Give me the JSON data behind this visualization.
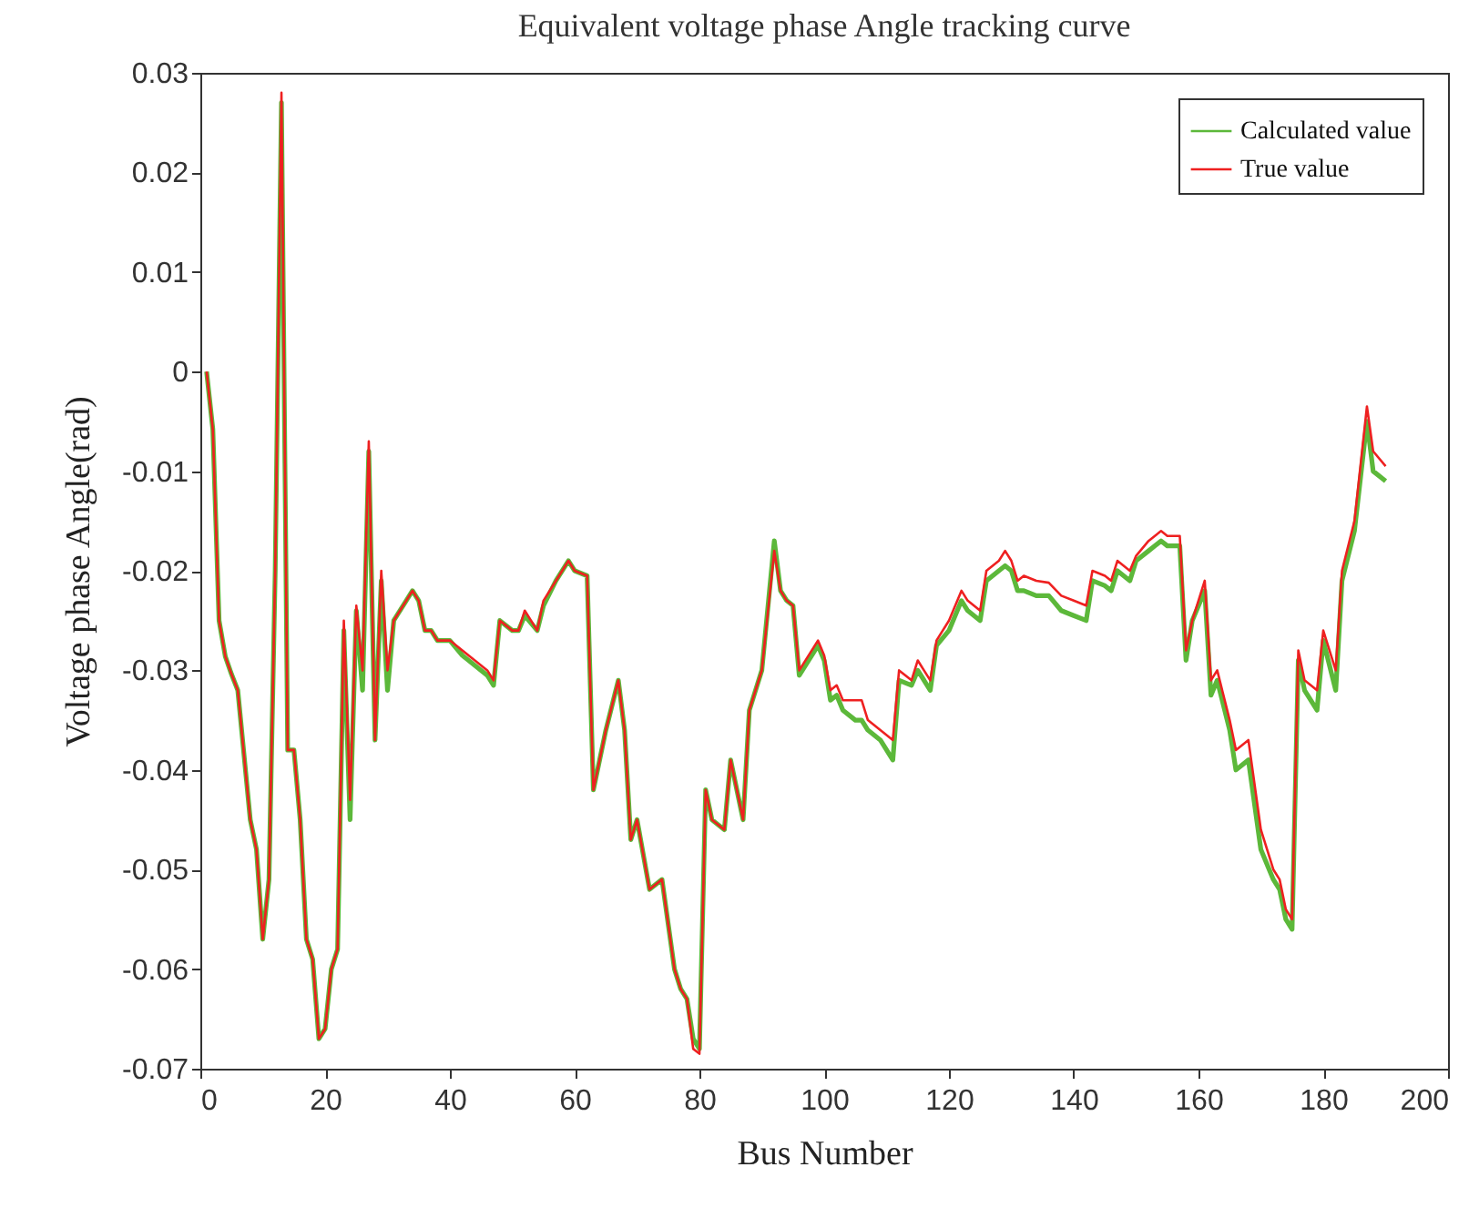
{
  "chart_data": {
    "type": "line",
    "title": "Equivalent voltage phase Angle tracking curve",
    "xlabel": "Bus Number",
    "ylabel": "Voltage phase Angle(rad)",
    "x": [
      1,
      2,
      3,
      4,
      5,
      6,
      8,
      9,
      10,
      11,
      12,
      13,
      14,
      15,
      16,
      17,
      18,
      19,
      20,
      21,
      22,
      23,
      24,
      25,
      26,
      27,
      28,
      29,
      30,
      31,
      33,
      34,
      35,
      36,
      37,
      38,
      40,
      42,
      44,
      46,
      47,
      48,
      50,
      51,
      52,
      54,
      55,
      57,
      59,
      60,
      62,
      63,
      65,
      67,
      68,
      69,
      70,
      72,
      74,
      76,
      77,
      78,
      79,
      80,
      81,
      82,
      84,
      85,
      87,
      88,
      90,
      92,
      93,
      94,
      95,
      96,
      99,
      100,
      101,
      102,
      103,
      105,
      106,
      107,
      109,
      111,
      112,
      114,
      115,
      117,
      118,
      120,
      122,
      123,
      125,
      126,
      128,
      129,
      130,
      131,
      132,
      134,
      136,
      138,
      140,
      142,
      143,
      145,
      146,
      147,
      149,
      150,
      152,
      154,
      155,
      157,
      158,
      159,
      161,
      162,
      163,
      165,
      166,
      168,
      170,
      172,
      173,
      174,
      175,
      176,
      177,
      179,
      180,
      182,
      183,
      185,
      187,
      188,
      190
    ],
    "series": [
      {
        "name": "Calculated value",
        "color": "#5cb83a",
        "values": [
          0,
          -0.0058,
          -0.025,
          -0.0286,
          -0.0304,
          -0.032,
          -0.045,
          -0.048,
          -0.057,
          -0.051,
          -0.02,
          0.027,
          -0.038,
          -0.038,
          -0.045,
          -0.057,
          -0.059,
          -0.067,
          -0.066,
          -0.06,
          -0.058,
          -0.026,
          -0.045,
          -0.024,
          -0.032,
          -0.008,
          -0.037,
          -0.021,
          -0.032,
          -0.025,
          -0.023,
          -0.022,
          -0.023,
          -0.026,
          -0.026,
          -0.027,
          -0.027,
          -0.0285,
          -0.0295,
          -0.0305,
          -0.0315,
          -0.025,
          -0.026,
          -0.026,
          -0.0245,
          -0.026,
          -0.0235,
          -0.021,
          -0.019,
          -0.02,
          -0.0205,
          -0.042,
          -0.036,
          -0.031,
          -0.036,
          -0.047,
          -0.045,
          -0.052,
          -0.051,
          -0.06,
          -0.062,
          -0.063,
          -0.067,
          -0.068,
          -0.042,
          -0.045,
          -0.046,
          -0.039,
          -0.045,
          -0.034,
          -0.03,
          -0.017,
          -0.022,
          -0.023,
          -0.0235,
          -0.0305,
          -0.0275,
          -0.029,
          -0.033,
          -0.0325,
          -0.034,
          -0.035,
          -0.035,
          -0.036,
          -0.037,
          -0.039,
          -0.031,
          -0.0315,
          -0.03,
          -0.032,
          -0.0275,
          -0.026,
          -0.023,
          -0.024,
          -0.025,
          -0.021,
          -0.02,
          -0.0195,
          -0.02,
          -0.022,
          -0.022,
          -0.0225,
          -0.0225,
          -0.024,
          -0.0245,
          -0.025,
          -0.021,
          -0.0215,
          -0.022,
          -0.02,
          -0.021,
          -0.019,
          -0.018,
          -0.017,
          -0.0175,
          -0.0175,
          -0.029,
          -0.025,
          -0.022,
          -0.0325,
          -0.031,
          -0.036,
          -0.04,
          -0.039,
          -0.048,
          -0.051,
          -0.052,
          -0.055,
          -0.056,
          -0.029,
          -0.032,
          -0.034,
          -0.027,
          -0.032,
          -0.021,
          -0.016,
          -0.005,
          -0.01,
          -0.011
        ]
      },
      {
        "name": "True value",
        "color": "#ee2020",
        "values": [
          0,
          -0.0058,
          -0.025,
          -0.0286,
          -0.0304,
          -0.032,
          -0.045,
          -0.048,
          -0.057,
          -0.051,
          -0.02,
          0.028,
          -0.038,
          -0.038,
          -0.045,
          -0.057,
          -0.059,
          -0.067,
          -0.066,
          -0.06,
          -0.058,
          -0.025,
          -0.043,
          -0.0235,
          -0.03,
          -0.007,
          -0.037,
          -0.02,
          -0.03,
          -0.025,
          -0.023,
          -0.022,
          -0.023,
          -0.026,
          -0.026,
          -0.027,
          -0.027,
          -0.028,
          -0.029,
          -0.03,
          -0.031,
          -0.025,
          -0.026,
          -0.026,
          -0.024,
          -0.026,
          -0.023,
          -0.021,
          -0.019,
          -0.02,
          -0.0205,
          -0.042,
          -0.036,
          -0.031,
          -0.036,
          -0.047,
          -0.045,
          -0.052,
          -0.051,
          -0.06,
          -0.062,
          -0.063,
          -0.068,
          -0.0685,
          -0.042,
          -0.045,
          -0.046,
          -0.039,
          -0.045,
          -0.034,
          -0.03,
          -0.018,
          -0.022,
          -0.023,
          -0.0235,
          -0.03,
          -0.027,
          -0.0285,
          -0.032,
          -0.0315,
          -0.033,
          -0.033,
          -0.033,
          -0.035,
          -0.036,
          -0.037,
          -0.03,
          -0.031,
          -0.029,
          -0.031,
          -0.027,
          -0.025,
          -0.022,
          -0.023,
          -0.024,
          -0.02,
          -0.019,
          -0.018,
          -0.019,
          -0.021,
          -0.0205,
          -0.021,
          -0.0212,
          -0.0225,
          -0.023,
          -0.0235,
          -0.02,
          -0.0205,
          -0.021,
          -0.019,
          -0.02,
          -0.0185,
          -0.017,
          -0.016,
          -0.0165,
          -0.0165,
          -0.028,
          -0.025,
          -0.021,
          -0.031,
          -0.03,
          -0.035,
          -0.038,
          -0.037,
          -0.046,
          -0.05,
          -0.051,
          -0.054,
          -0.055,
          -0.028,
          -0.031,
          -0.032,
          -0.026,
          -0.03,
          -0.02,
          -0.015,
          -0.0035,
          -0.008,
          -0.0095
        ]
      }
    ],
    "xlim": [
      0,
      200
    ],
    "xticks": [
      0,
      20,
      40,
      60,
      80,
      100,
      120,
      140,
      160,
      180,
      200
    ],
    "ylim": [
      -0.07,
      0.03
    ],
    "yticks": [
      -0.07,
      -0.06,
      -0.05,
      -0.04,
      -0.03,
      -0.02,
      -0.01,
      0,
      0.01,
      0.02,
      0.03
    ],
    "grid": false,
    "legend": "top right"
  }
}
